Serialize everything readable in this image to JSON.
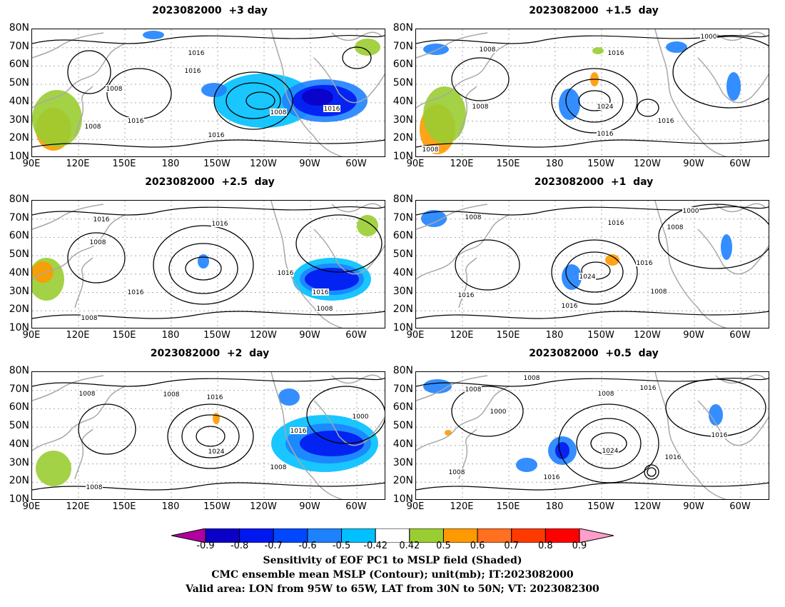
{
  "panels": [
    {
      "title": "2023082000  +3 day"
    },
    {
      "title": "2023082000  +1.5  day"
    },
    {
      "title": "2023082000  +2.5  day"
    },
    {
      "title": "2023082000  +1  day"
    },
    {
      "title": "2023082000  +2  day"
    },
    {
      "title": "2023082000  +0.5  day"
    }
  ],
  "lat_labels": [
    "80N",
    "70N",
    "60N",
    "50N",
    "40N",
    "30N",
    "20N",
    "10N"
  ],
  "lon_labels": [
    "90E",
    "120E",
    "150E",
    "180",
    "150W",
    "120W",
    "90W",
    "60W"
  ],
  "contour_labels": {
    "p0": [
      "1016",
      "1016",
      "1008",
      "1016",
      "1008",
      "1008",
      "1016",
      "1016"
    ],
    "p1": [
      "1008",
      "1000",
      "1016",
      "1008",
      "1024",
      "1016",
      "1016",
      "1008"
    ],
    "p2": [
      "1016",
      "1016",
      "1008",
      "1016",
      "1016",
      "1008",
      "1016",
      "1008"
    ],
    "p3": [
      "1000",
      "1008",
      "1016",
      "1008",
      "1016",
      "1024",
      "1016",
      "1008",
      "1016"
    ],
    "p4": [
      "1008",
      "1008",
      "1016",
      "1000",
      "1016",
      "1024",
      "1008",
      "1008"
    ],
    "p5": [
      "1008",
      "1008",
      "1016",
      "1008",
      "1000",
      "1016",
      "1024",
      "1016",
      "1016",
      "1008"
    ]
  },
  "colorbar": {
    "ticks": [
      "-0.9",
      "-0.8",
      "-0.7",
      "-0.6",
      "-0.5",
      "-0.42",
      "0.42",
      "0.5",
      "0.6",
      "0.7",
      "0.8",
      "0.9"
    ],
    "colors": [
      "#b0009f",
      "#0a00c8",
      "#0018f0",
      "#0048ff",
      "#1e82ff",
      "#00c0ff",
      "#ffffff",
      "#9acd32",
      "#ff9900",
      "#ff7020",
      "#ff3a00",
      "#ff0000",
      "#ff9ec8"
    ]
  },
  "captions": [
    "Sensitivity of EOF PC1 to MSLP field (Shaded)",
    "CMC ensemble mean MSLP (Contour); unit(mb); IT:2023082000",
    "Valid area: LON from 95W to 65W, LAT from 30N to 50N; VT: 2023082300"
  ]
}
